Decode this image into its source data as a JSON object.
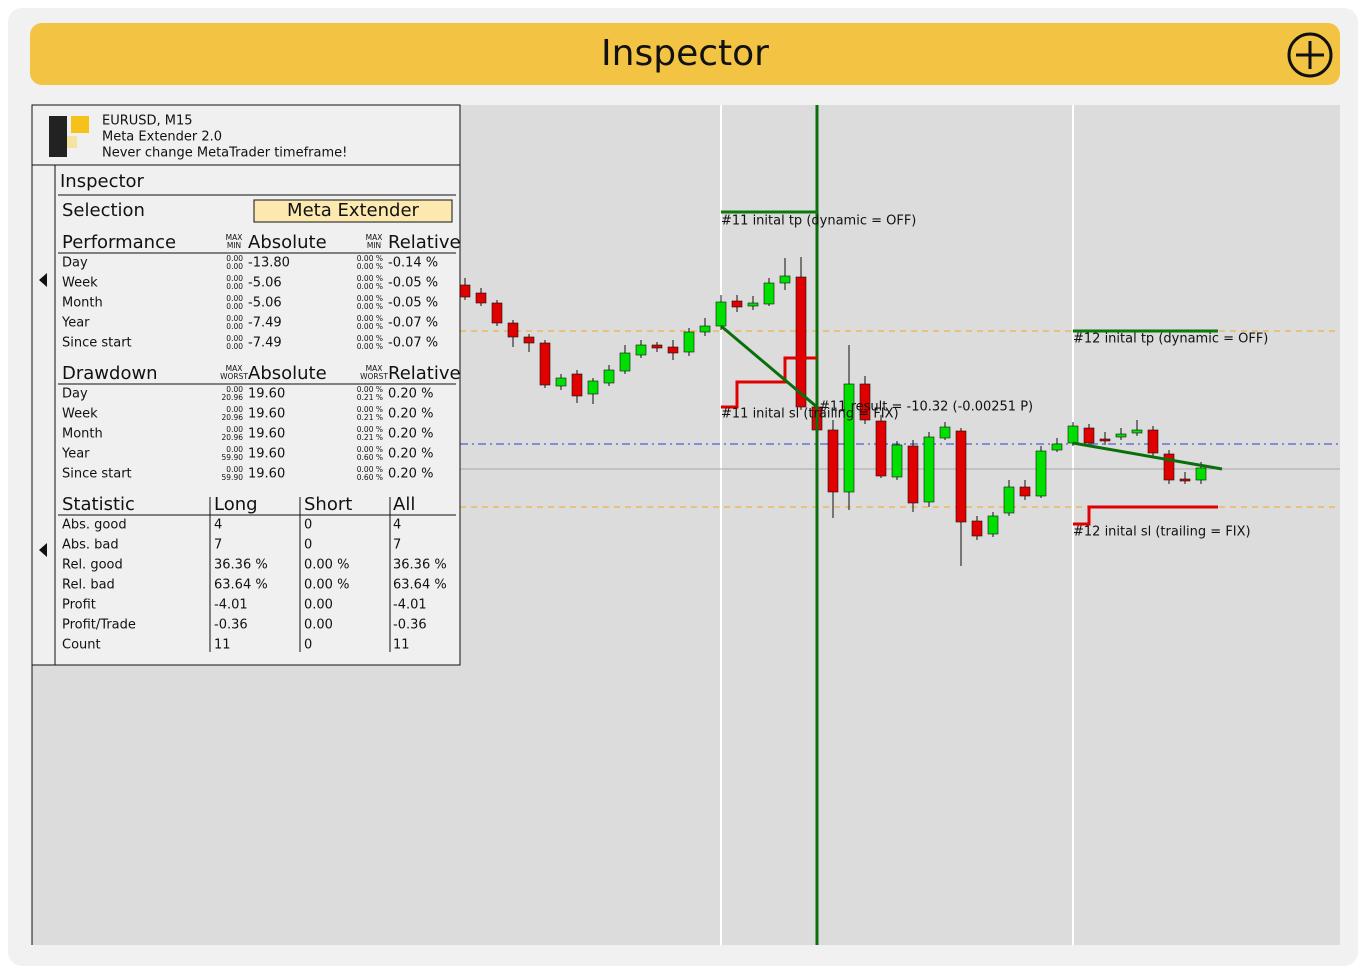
{
  "header": {
    "title": "Inspector"
  },
  "panel": {
    "info": [
      "EURUSD, M15",
      "Meta Extender 2.0",
      "Never change MetaTrader timeframe!"
    ],
    "title": "Inspector",
    "selection": {
      "label": "Selection",
      "button": "Meta Extender"
    },
    "performance": {
      "headers": [
        "Performance",
        "Absolute",
        "Relative"
      ],
      "range_labels": [
        "MAX",
        "MIN"
      ],
      "rows": [
        {
          "label": "Day",
          "abs_range": [
            "0.00",
            "0.00"
          ],
          "absolute": "-13.80",
          "rel_range": [
            "0.00 %",
            "0.00 %"
          ],
          "relative": "-0.14 %"
        },
        {
          "label": "Week",
          "abs_range": [
            "0.00",
            "0.00"
          ],
          "absolute": "-5.06",
          "rel_range": [
            "0.00 %",
            "0.00 %"
          ],
          "relative": "-0.05 %"
        },
        {
          "label": "Month",
          "abs_range": [
            "0.00",
            "0.00"
          ],
          "absolute": "-5.06",
          "rel_range": [
            "0.00 %",
            "0.00 %"
          ],
          "relative": "-0.05 %"
        },
        {
          "label": "Year",
          "abs_range": [
            "0.00",
            "0.00"
          ],
          "absolute": "-7.49",
          "rel_range": [
            "0.00 %",
            "0.00 %"
          ],
          "relative": "-0.07 %"
        },
        {
          "label": "Since start",
          "abs_range": [
            "0.00",
            "0.00"
          ],
          "absolute": "-7.49",
          "rel_range": [
            "0.00 %",
            "0.00 %"
          ],
          "relative": "-0.07 %"
        }
      ]
    },
    "drawdown": {
      "headers": [
        "Drawdown",
        "Absolute",
        "Relative"
      ],
      "range_labels": [
        "MAX",
        "WORST"
      ],
      "rows": [
        {
          "label": "Day",
          "abs_range": [
            "0.00",
            "20.96"
          ],
          "absolute": "19.60",
          "rel_range": [
            "0.00 %",
            "0.21 %"
          ],
          "relative": "0.20 %"
        },
        {
          "label": "Week",
          "abs_range": [
            "0.00",
            "20.96"
          ],
          "absolute": "19.60",
          "rel_range": [
            "0.00 %",
            "0.21 %"
          ],
          "relative": "0.20 %"
        },
        {
          "label": "Month",
          "abs_range": [
            "0.00",
            "20.96"
          ],
          "absolute": "19.60",
          "rel_range": [
            "0.00 %",
            "0.21 %"
          ],
          "relative": "0.20 %"
        },
        {
          "label": "Year",
          "abs_range": [
            "0.00",
            "59.90"
          ],
          "absolute": "19.60",
          "rel_range": [
            "0.00 %",
            "0.60 %"
          ],
          "relative": "0.20 %"
        },
        {
          "label": "Since start",
          "abs_range": [
            "0.00",
            "59.90"
          ],
          "absolute": "19.60",
          "rel_range": [
            "0.00 %",
            "0.60 %"
          ],
          "relative": "0.20 %"
        }
      ]
    },
    "statistic": {
      "headers": [
        "Statistic",
        "Long",
        "Short",
        "All"
      ],
      "rows": [
        [
          "Abs. good",
          "4",
          "0",
          "4"
        ],
        [
          "Abs. bad",
          "7",
          "0",
          "7"
        ],
        [
          "Rel. good",
          "36.36 %",
          "0.00 %",
          "36.36 %"
        ],
        [
          "Rel. bad",
          "63.64 %",
          "0.00 %",
          "63.64 %"
        ],
        [
          "Profit",
          "-4.01",
          "0.00",
          "-4.01"
        ],
        [
          "Profit/Trade",
          "-0.36",
          "0.00",
          "-0.36"
        ],
        [
          "Count",
          "11",
          "0",
          "11"
        ]
      ]
    }
  },
  "chart": {
    "annotations": [
      "#11 inital tp (dynamic = OFF)",
      "#11 inital sl (trailing = FIX)",
      "#11 result = -10.32 (-0.00251 P)",
      "#12 inital tp (dynamic = OFF)",
      "#12 inital sl (trailing = FIX)"
    ]
  }
}
